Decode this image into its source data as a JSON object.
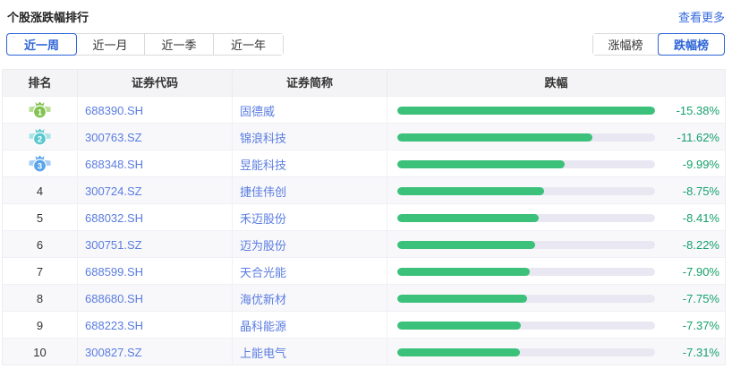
{
  "header": {
    "title": "个股涨跌幅排行",
    "more_label": "查看更多"
  },
  "filters": {
    "period_tabs": [
      {
        "label": "近一周",
        "active": true
      },
      {
        "label": "近一月",
        "active": false
      },
      {
        "label": "近一季",
        "active": false
      },
      {
        "label": "近一年",
        "active": false
      }
    ],
    "rank_toggle": [
      {
        "label": "涨幅榜",
        "active": false
      },
      {
        "label": "跌幅榜",
        "active": true
      }
    ]
  },
  "table": {
    "columns": [
      "排名",
      "证券代码",
      "证券简称",
      "跌幅"
    ],
    "rows": [
      {
        "rank": "1",
        "code": "688390.SH",
        "name": "固德威",
        "value": "-15.38%",
        "bar_pct": 100
      },
      {
        "rank": "2",
        "code": "300763.SZ",
        "name": "锦浪科技",
        "value": "-11.62%",
        "bar_pct": 75.6
      },
      {
        "rank": "3",
        "code": "688348.SH",
        "name": "昱能科技",
        "value": "-9.99%",
        "bar_pct": 65.0
      },
      {
        "rank": "4",
        "code": "300724.SZ",
        "name": "捷佳伟创",
        "value": "-8.75%",
        "bar_pct": 56.9
      },
      {
        "rank": "5",
        "code": "688032.SH",
        "name": "禾迈股份",
        "value": "-8.41%",
        "bar_pct": 54.7
      },
      {
        "rank": "6",
        "code": "300751.SZ",
        "name": "迈为股份",
        "value": "-8.22%",
        "bar_pct": 53.4
      },
      {
        "rank": "7",
        "code": "688599.SH",
        "name": "天合光能",
        "value": "-7.90%",
        "bar_pct": 51.4
      },
      {
        "rank": "8",
        "code": "688680.SH",
        "name": "海优新材",
        "value": "-7.75%",
        "bar_pct": 50.4
      },
      {
        "rank": "9",
        "code": "688223.SH",
        "name": "晶科能源",
        "value": "-7.37%",
        "bar_pct": 47.9
      },
      {
        "rank": "10",
        "code": "300827.SZ",
        "name": "上能电气",
        "value": "-7.31%",
        "bar_pct": 47.5
      }
    ]
  },
  "chart_data": {
    "type": "bar",
    "categories": [
      "固德威",
      "锦浪科技",
      "昱能科技",
      "捷佳伟创",
      "禾迈股份",
      "迈为股份",
      "天合光能",
      "海优新材",
      "晶科能源",
      "上能电气"
    ],
    "values": [
      -15.38,
      -11.62,
      -9.99,
      -8.75,
      -8.41,
      -8.22,
      -7.9,
      -7.75,
      -7.37,
      -7.31
    ],
    "title": "跌幅",
    "xlabel": "",
    "ylabel": "跌幅 (%)",
    "xlim": [
      0,
      -15.38
    ],
    "legend": false,
    "grid": false
  },
  "colors": {
    "accent_blue": "#2d64d8",
    "link_blue": "#3468dd",
    "stock_blue": "#5a7ce0",
    "bar_green": "#3bc17a",
    "value_green": "#17a06c",
    "bar_track": "#e9e7f2",
    "header_bg": "#f4f4f6",
    "alt_row_bg": "#f8f8fb",
    "medals": [
      {
        "main": "#82c250",
        "light": "#b7df93"
      },
      {
        "main": "#5bc8cd",
        "light": "#a8e4e5"
      },
      {
        "main": "#59a4ea",
        "light": "#a6cdf5"
      }
    ]
  }
}
